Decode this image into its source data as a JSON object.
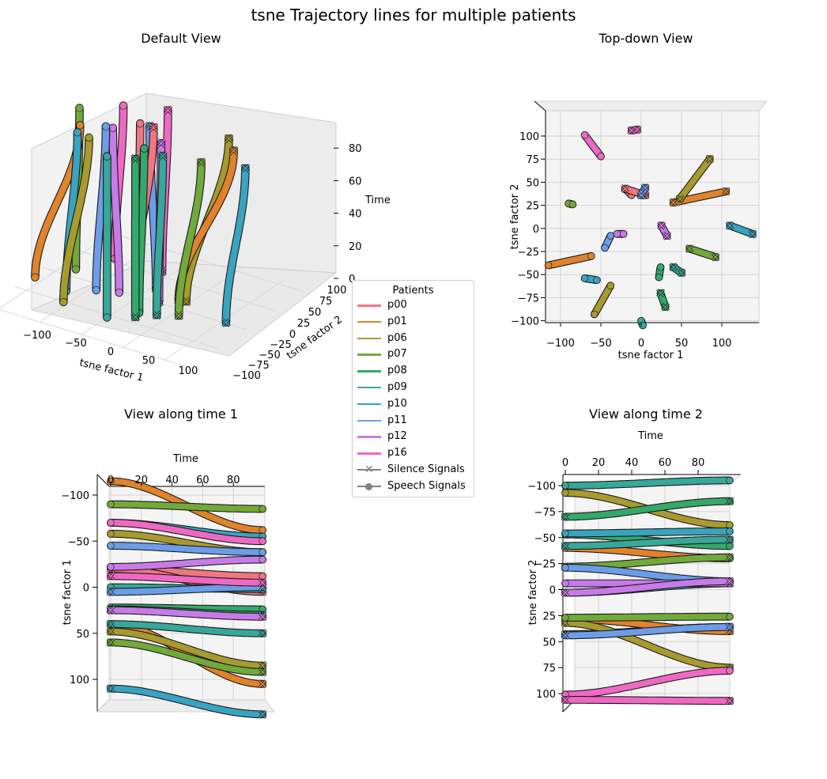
{
  "figure": {
    "title": "tsne Trajectory lines for multiple patients"
  },
  "panels": {
    "default_view": {
      "title": "Default View",
      "xlabel": "tsne factor 1",
      "ylabel": "tsne factor 2",
      "zlabel": "Time",
      "x_ticks": [
        "−100",
        "−50",
        "0",
        "50",
        "100"
      ],
      "y_ticks": [
        "−100",
        "−75",
        "−50",
        "−25",
        "0",
        "25",
        "50",
        "75",
        "100"
      ],
      "z_ticks": [
        "0",
        "20",
        "40",
        "60",
        "80"
      ]
    },
    "top_down_view": {
      "title": "Top-down View",
      "xlabel": "tsne factor 1",
      "ylabel": "tsne factor 2",
      "x_ticks": [
        "−100",
        "−50",
        "0",
        "50",
        "100"
      ],
      "y_ticks": [
        "100",
        "75",
        "50",
        "25",
        "0",
        "−25",
        "−50",
        "−75",
        "−100"
      ]
    },
    "view_time_1": {
      "title": "View along time 1",
      "xlabel": "Time",
      "ylabel": "tsne factor 1",
      "x_ticks": [
        "0",
        "20",
        "40",
        "60",
        "80"
      ],
      "y_ticks": [
        "−100",
        "−50",
        "0",
        "50",
        "100"
      ]
    },
    "view_time_2": {
      "title": "View along time 2",
      "xlabel": "Time",
      "ylabel": "tsne factor 2",
      "x_ticks": [
        "0",
        "20",
        "40",
        "60",
        "80"
      ],
      "y_ticks": [
        "−100",
        "−75",
        "−50",
        "−25",
        "0",
        "25",
        "50",
        "75",
        "100"
      ]
    }
  },
  "legend": {
    "title": "Patients",
    "items": [
      {
        "label": "p00",
        "color": "#f07681"
      },
      {
        "label": "p01",
        "color": "#e0832c"
      },
      {
        "label": "p06",
        "color": "#a79b2f"
      },
      {
        "label": "p07",
        "color": "#72a93b"
      },
      {
        "label": "p08",
        "color": "#35a86b"
      },
      {
        "label": "p09",
        "color": "#37a899"
      },
      {
        "label": "p10",
        "color": "#39a4bf"
      },
      {
        "label": "p11",
        "color": "#6c9de8"
      },
      {
        "label": "p12",
        "color": "#c77be8"
      },
      {
        "label": "p16",
        "color": "#ef69c4"
      }
    ],
    "markers": [
      {
        "label": "Silence Signals",
        "marker": "x",
        "color": "#808080"
      },
      {
        "label": "Speech Signals",
        "marker": "o",
        "color": "#808080"
      }
    ]
  },
  "chart_data": {
    "type": "scatter",
    "title": "tsne Trajectory lines for multiple patients",
    "dimensions": [
      "tsne factor 1",
      "tsne factor 2",
      "Time"
    ],
    "time_range": [
      0,
      99
    ],
    "xlim": [
      -120,
      140
    ],
    "ylim": [
      -105,
      120
    ],
    "zlim": [
      0,
      99
    ],
    "series": [
      {
        "name": "p00",
        "color": "#f07681",
        "trajectories": [
          {
            "kind": "speech",
            "start": [
              -20,
              43
            ],
            "end": [
              -12,
              36
            ]
          },
          {
            "kind": "silence",
            "start": [
              -20,
              43
            ],
            "end": [
              5,
              36
            ]
          }
        ]
      },
      {
        "name": "p01",
        "color": "#e0832c",
        "trajectories": [
          {
            "kind": "speech",
            "start": [
              -115,
              -40
            ],
            "end": [
              -62,
              -30
            ]
          },
          {
            "kind": "silence",
            "start": [
              40,
              28
            ],
            "end": [
              105,
              40
            ]
          }
        ]
      },
      {
        "name": "p06",
        "color": "#a79b2f",
        "trajectories": [
          {
            "kind": "speech",
            "start": [
              -58,
              -93
            ],
            "end": [
              -38,
              -62
            ]
          },
          {
            "kind": "silence",
            "start": [
              48,
              32
            ],
            "end": [
              85,
              75
            ]
          }
        ]
      },
      {
        "name": "p07",
        "color": "#72a93b",
        "trajectories": [
          {
            "kind": "speech",
            "start": [
              -90,
              27
            ],
            "end": [
              -85,
              26
            ]
          },
          {
            "kind": "silence",
            "start": [
              60,
              -22
            ],
            "end": [
              92,
              -31
            ]
          }
        ]
      },
      {
        "name": "p08",
        "color": "#35a86b",
        "trajectories": [
          {
            "kind": "speech",
            "start": [
              22,
              -53
            ],
            "end": [
              24,
              -42
            ]
          },
          {
            "kind": "silence",
            "start": [
              24,
              -70
            ],
            "end": [
              30,
              -85
            ]
          }
        ]
      },
      {
        "name": "p09",
        "color": "#37a899",
        "trajectories": [
          {
            "kind": "speech",
            "start": [
              0,
              -100
            ],
            "end": [
              2,
              -105
            ]
          },
          {
            "kind": "silence",
            "start": [
              40,
              -42
            ],
            "end": [
              50,
              -48
            ]
          }
        ]
      },
      {
        "name": "p10",
        "color": "#39a4bf",
        "trajectories": [
          {
            "kind": "speech",
            "start": [
              -70,
              -54
            ],
            "end": [
              -55,
              -56
            ]
          },
          {
            "kind": "silence",
            "start": [
              110,
              3
            ],
            "end": [
              138,
              -6
            ]
          }
        ]
      },
      {
        "name": "p11",
        "color": "#6c9de8",
        "trajectories": [
          {
            "kind": "speech",
            "start": [
              -45,
              -21
            ],
            "end": [
              -38,
              -8
            ]
          },
          {
            "kind": "silence",
            "start": [
              5,
              44
            ],
            "end": [
              0,
              36
            ]
          }
        ]
      },
      {
        "name": "p12",
        "color": "#c77be8",
        "trajectories": [
          {
            "kind": "speech",
            "start": [
              -22,
              -6
            ],
            "end": [
              -30,
              -6
            ]
          },
          {
            "kind": "silence",
            "start": [
              25,
              3
            ],
            "end": [
              32,
              -8
            ]
          }
        ]
      },
      {
        "name": "p16",
        "color": "#ef69c4",
        "trajectories": [
          {
            "kind": "speech",
            "start": [
              -70,
              101
            ],
            "end": [
              -50,
              78
            ]
          },
          {
            "kind": "silence",
            "start": [
              -12,
              106
            ],
            "end": [
              -5,
              107
            ]
          }
        ]
      }
    ]
  }
}
